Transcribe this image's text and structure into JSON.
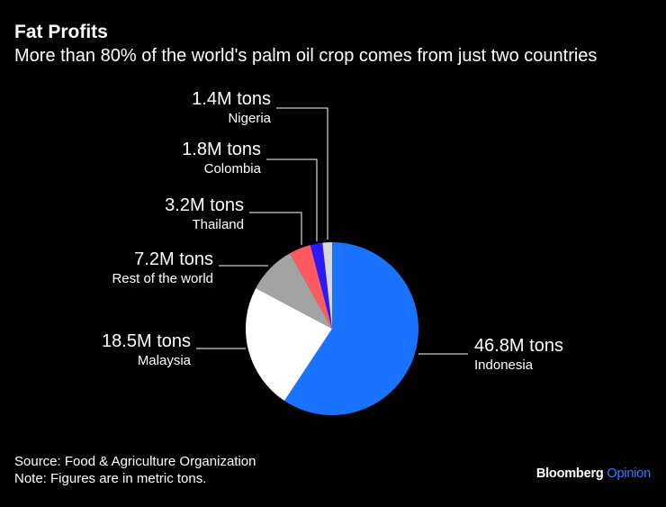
{
  "header": {
    "title": "Fat Profits",
    "subtitle": "More than 80% of the world's palm oil crop comes from just two countries"
  },
  "footer": {
    "source": "Source: Food & Agriculture Organization",
    "note": "Note: Figures are in metric tons."
  },
  "brand": {
    "name": "Bloomberg",
    "suffix": "Opinion"
  },
  "chart_data": {
    "type": "pie",
    "unit": "M tons",
    "start_angle_deg": 0,
    "direction": "clockwise",
    "slices": [
      {
        "name": "Indonesia",
        "value": 46.8,
        "value_label": "46.8M tons",
        "color": "#1a73ff"
      },
      {
        "name": "Malaysia",
        "value": 18.5,
        "value_label": "18.5M tons",
        "color": "#ffffff"
      },
      {
        "name": "Rest of the world",
        "value": 7.2,
        "value_label": "7.2M tons",
        "color": "#a3a3a3"
      },
      {
        "name": "Thailand",
        "value": 3.2,
        "value_label": "3.2M tons",
        "color": "#ff5a5f"
      },
      {
        "name": "Colombia",
        "value": 1.8,
        "value_label": "1.8M tons",
        "color": "#2a1bff"
      },
      {
        "name": "Nigeria",
        "value": 1.4,
        "value_label": "1.4M tons",
        "color": "#d9d9d9"
      }
    ]
  }
}
